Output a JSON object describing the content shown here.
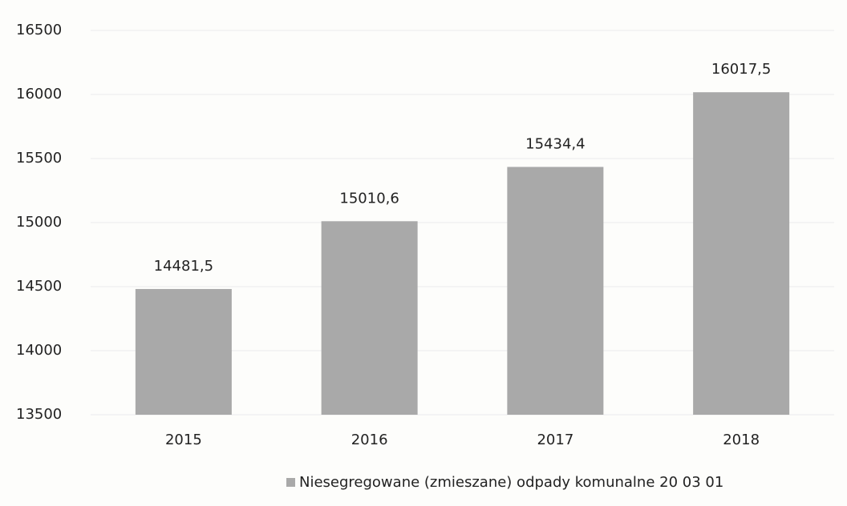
{
  "chart_data": {
    "type": "bar",
    "categories": [
      "2015",
      "2016",
      "2017",
      "2018"
    ],
    "series": [
      {
        "name": "Niesegregowane (zmieszane) odpady komunalne 20 03 01",
        "color": "#a9a9a9",
        "values": [
          14481.5,
          15010.6,
          15434.4,
          16017.5
        ],
        "value_labels": [
          "14481,5",
          "15010,6",
          "15434,4",
          "16017,5"
        ]
      }
    ],
    "ylim": [
      13500,
      16500
    ],
    "yticks": [
      13500,
      14000,
      14500,
      15000,
      15500,
      16000,
      16500
    ],
    "grid": true,
    "legend": "bottom"
  }
}
